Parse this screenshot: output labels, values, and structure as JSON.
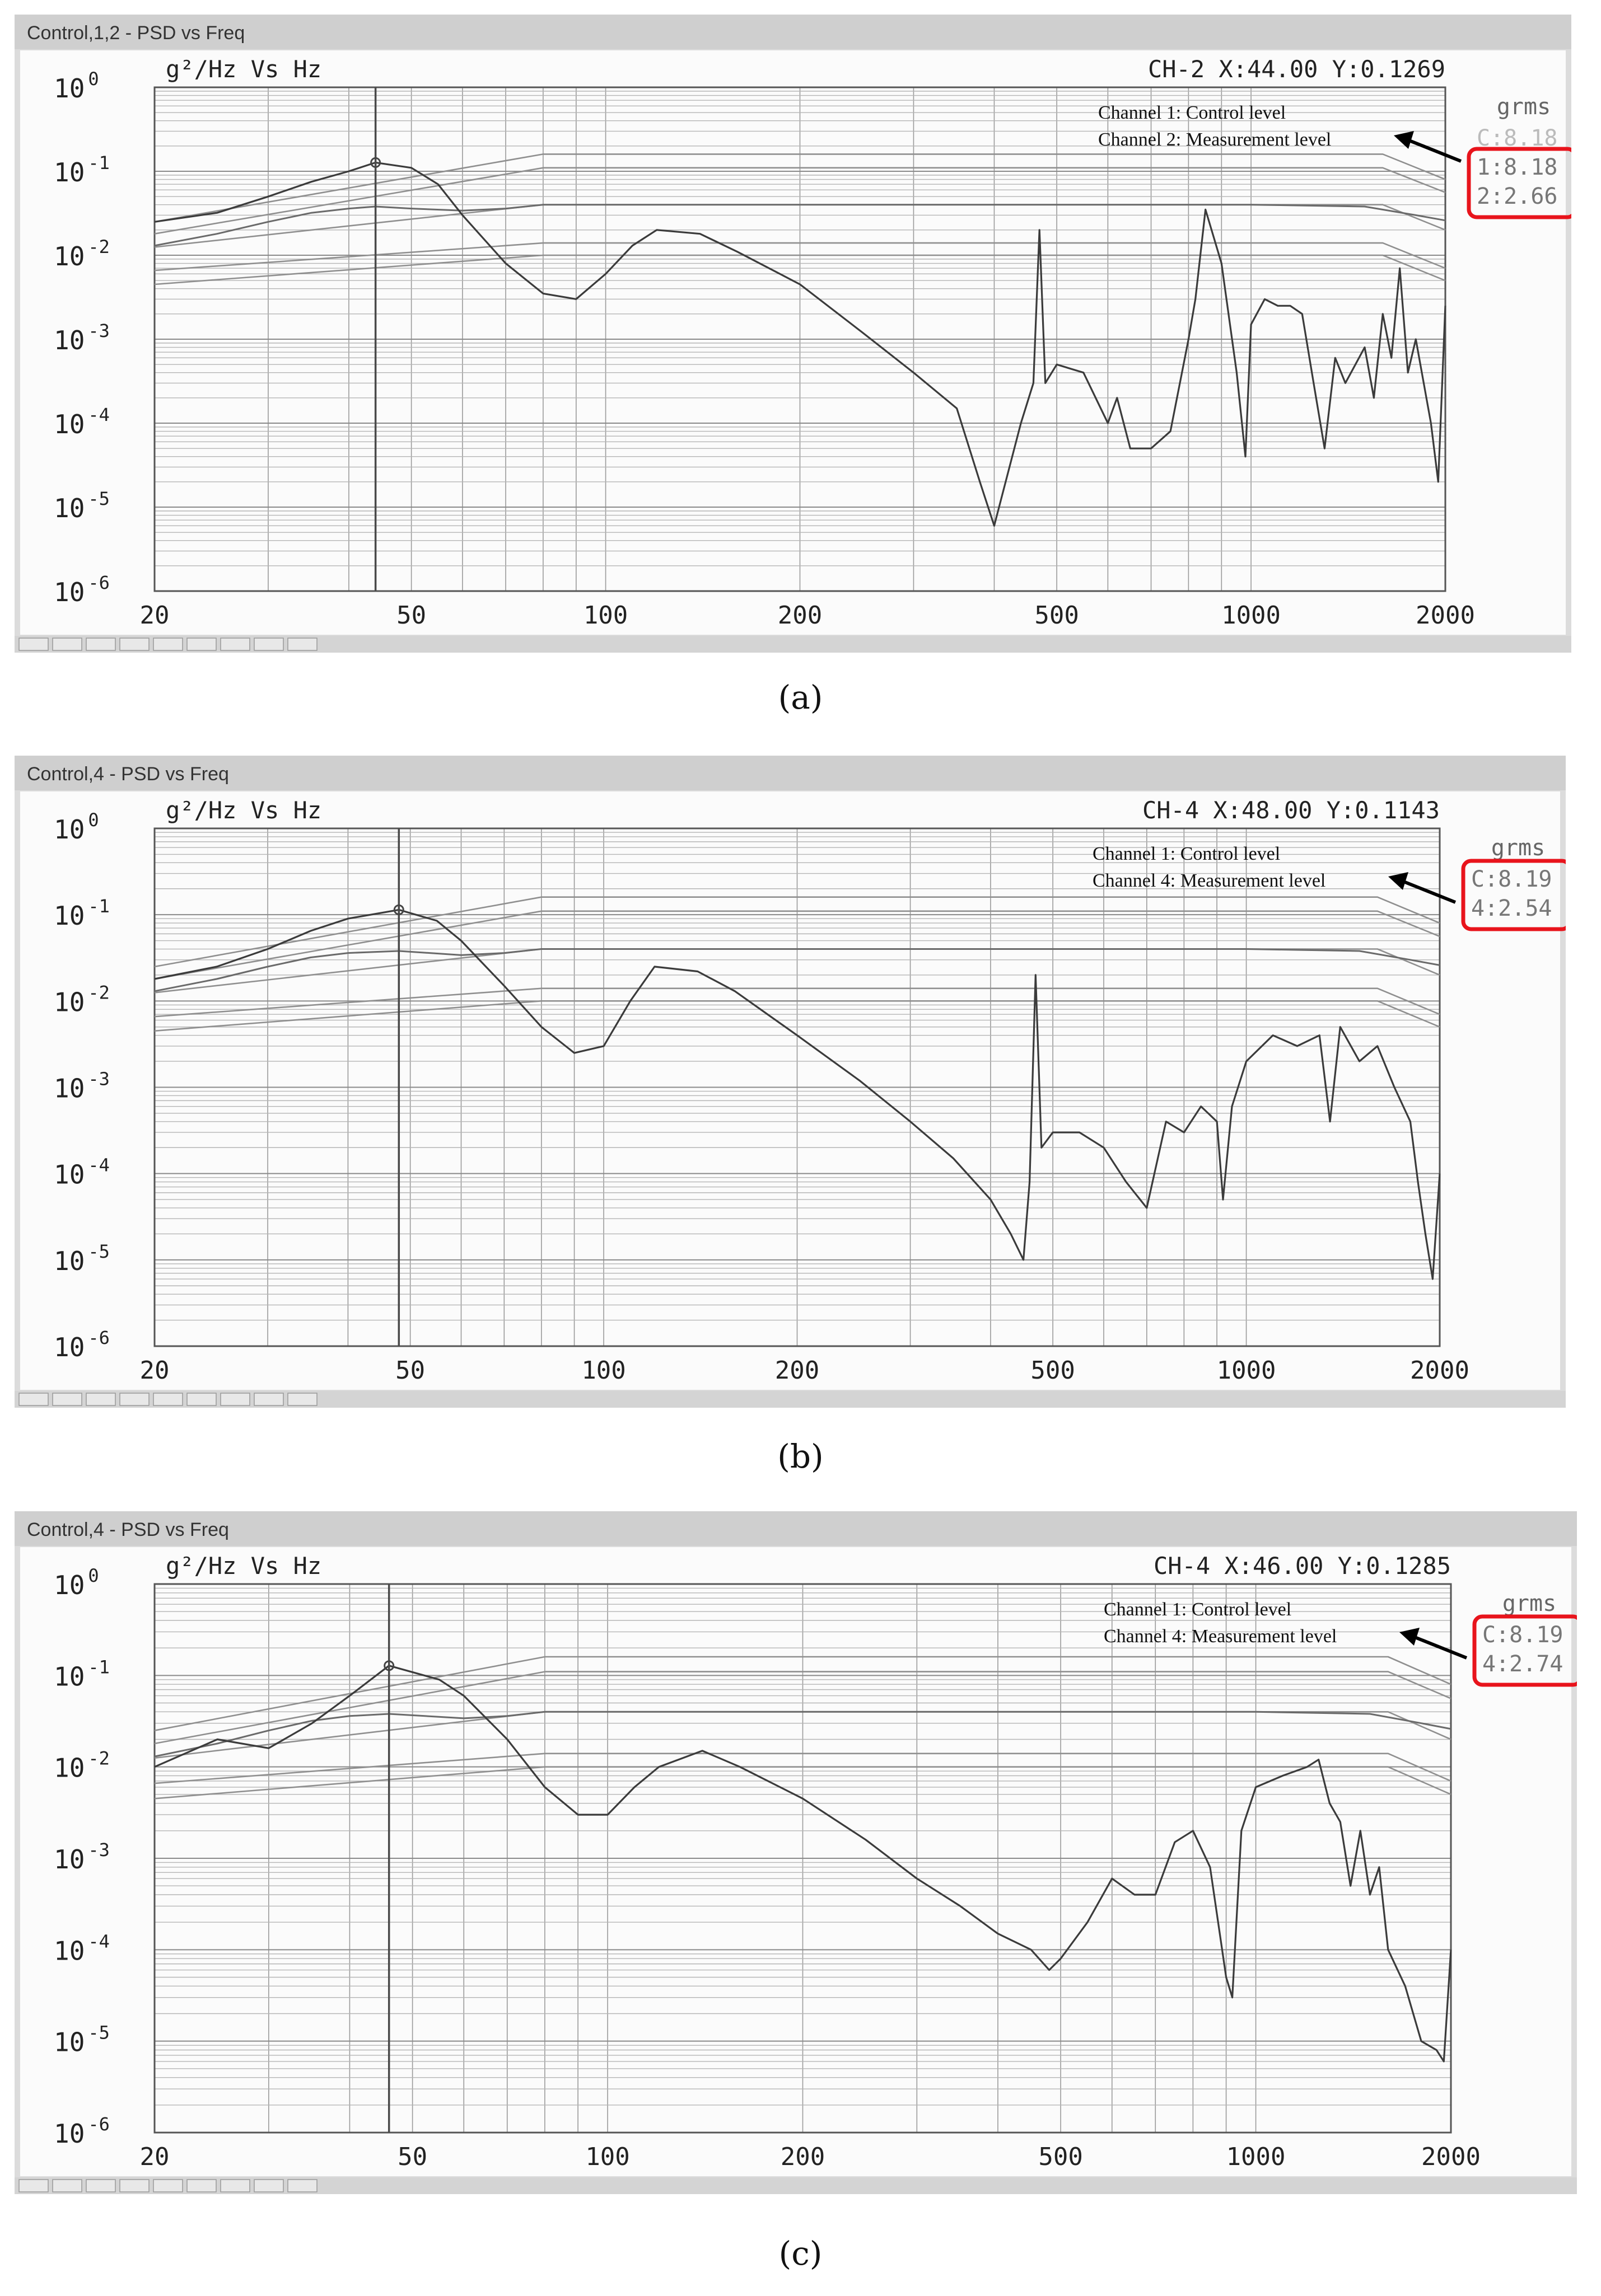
{
  "chart_data": [
    {
      "type": "line",
      "panel_label": "(a)",
      "window_title": "Control,1,2 - PSD vs Freq",
      "ylabel": "g²/Hz Vs Hz",
      "cursor_readout": "CH-2 X:44.00 Y:0.1269",
      "xscale": "log",
      "yscale": "log",
      "xlim": [
        20,
        2000
      ],
      "ylim": [
        1e-06,
        1
      ],
      "x_ticks": [
        "20",
        "50",
        "100",
        "200",
        "500",
        "1000",
        "2000"
      ],
      "y_tick_bases": [
        "10",
        "10",
        "10",
        "10",
        "10",
        "10",
        "10"
      ],
      "y_tick_exponents": [
        "0",
        "-1",
        "-2",
        "-3",
        "-4",
        "-5",
        "-6"
      ],
      "grid": true,
      "cursor_x": 44,
      "legend": {
        "line1": "Channel 1:  Control level",
        "line2": "Channel 2:  Measurement level",
        "placement": "top-right"
      },
      "grms": {
        "title": "grms",
        "entries": [
          "C:8.18",
          "1:8.18",
          "2:2.66"
        ],
        "highlighted": [
          1,
          2
        ]
      },
      "series": [
        {
          "role": "profile-upper-abort",
          "x": [
            20,
            80,
            1600,
            2000
          ],
          "y": [
            0.025,
            0.16,
            0.16,
            0.08
          ]
        },
        {
          "role": "profile-upper-alarm",
          "x": [
            20,
            80,
            1600,
            2000
          ],
          "y": [
            0.018,
            0.11,
            0.11,
            0.056
          ]
        },
        {
          "role": "profile-reference",
          "x": [
            20,
            80,
            1600,
            2000
          ],
          "y": [
            0.0125,
            0.04,
            0.04,
            0.02
          ]
        },
        {
          "role": "profile-lower-alarm",
          "x": [
            20,
            80,
            1600,
            2000
          ],
          "y": [
            0.0066,
            0.014,
            0.014,
            0.007
          ]
        },
        {
          "role": "profile-lower-abort",
          "x": [
            20,
            80,
            1600,
            2000
          ],
          "y": [
            0.0045,
            0.01,
            0.01,
            0.005
          ]
        },
        {
          "role": "control",
          "x": [
            20,
            25,
            30,
            35,
            40,
            44,
            50,
            60,
            70,
            80,
            100,
            200,
            500,
            1000,
            1500,
            1800,
            2000
          ],
          "y": [
            0.013,
            0.018,
            0.025,
            0.032,
            0.036,
            0.038,
            0.036,
            0.034,
            0.036,
            0.04,
            0.04,
            0.04,
            0.04,
            0.04,
            0.038,
            0.03,
            0.026
          ]
        },
        {
          "role": "measurement",
          "x": [
            20,
            25,
            30,
            35,
            40,
            44,
            50,
            55,
            60,
            70,
            80,
            90,
            100,
            110,
            120,
            140,
            160,
            200,
            250,
            300,
            350,
            380,
            400,
            440,
            460,
            470,
            480,
            500,
            550,
            600,
            620,
            650,
            700,
            750,
            800,
            820,
            850,
            900,
            950,
            980,
            1000,
            1050,
            1100,
            1150,
            1200,
            1250,
            1300,
            1350,
            1400,
            1500,
            1550,
            1600,
            1650,
            1700,
            1750,
            1800,
            1900,
            1950,
            2000
          ],
          "y": [
            0.025,
            0.032,
            0.05,
            0.075,
            0.1,
            0.127,
            0.11,
            0.07,
            0.03,
            0.008,
            0.0035,
            0.003,
            0.006,
            0.013,
            0.02,
            0.018,
            0.011,
            0.0045,
            0.0012,
            0.0004,
            0.00015,
            2e-05,
            6e-06,
            0.0001,
            0.0003,
            0.02,
            0.0003,
            0.0005,
            0.0004,
            0.0001,
            0.0002,
            5e-05,
            5e-05,
            8e-05,
            0.001,
            0.003,
            0.035,
            0.008,
            0.0004,
            4e-05,
            0.0015,
            0.003,
            0.0025,
            0.0025,
            0.002,
            0.0003,
            5e-05,
            0.0006,
            0.0003,
            0.0008,
            0.0002,
            0.002,
            0.0006,
            0.007,
            0.0004,
            0.001,
            0.0001,
            2e-05,
            0.0025
          ]
        }
      ]
    },
    {
      "type": "line",
      "panel_label": "(b)",
      "window_title": "Control,4 - PSD vs Freq",
      "ylabel": "g²/Hz Vs Hz",
      "cursor_readout": "CH-4 X:48.00 Y:0.1143",
      "xscale": "log",
      "yscale": "log",
      "xlim": [
        20,
        2000
      ],
      "ylim": [
        1e-06,
        1
      ],
      "x_ticks": [
        "20",
        "50",
        "100",
        "200",
        "500",
        "1000",
        "2000"
      ],
      "y_tick_bases": [
        "10",
        "10",
        "10",
        "10",
        "10",
        "10",
        "10"
      ],
      "y_tick_exponents": [
        "0",
        "-1",
        "-2",
        "-3",
        "-4",
        "-5",
        "-6"
      ],
      "grid": true,
      "cursor_x": 48,
      "legend": {
        "line1": "Channel 1:  Control level",
        "line2": "Channel 4:  Measurement level",
        "placement": "top-right"
      },
      "grms": {
        "title": "grms",
        "entries": [
          "C:8.19",
          "4:2.54"
        ],
        "highlighted": [
          0,
          1
        ]
      },
      "series": [
        {
          "role": "profile-upper-abort",
          "x": [
            20,
            80,
            1600,
            2000
          ],
          "y": [
            0.025,
            0.16,
            0.16,
            0.08
          ]
        },
        {
          "role": "profile-upper-alarm",
          "x": [
            20,
            80,
            1600,
            2000
          ],
          "y": [
            0.018,
            0.11,
            0.11,
            0.056
          ]
        },
        {
          "role": "profile-reference",
          "x": [
            20,
            80,
            1600,
            2000
          ],
          "y": [
            0.0125,
            0.04,
            0.04,
            0.02
          ]
        },
        {
          "role": "profile-lower-alarm",
          "x": [
            20,
            80,
            1600,
            2000
          ],
          "y": [
            0.0066,
            0.014,
            0.014,
            0.007
          ]
        },
        {
          "role": "profile-lower-abort",
          "x": [
            20,
            80,
            1600,
            2000
          ],
          "y": [
            0.0045,
            0.01,
            0.01,
            0.005
          ]
        },
        {
          "role": "control",
          "x": [
            20,
            25,
            30,
            35,
            40,
            48,
            60,
            70,
            80,
            100,
            200,
            500,
            1000,
            1500,
            1800,
            2000
          ],
          "y": [
            0.013,
            0.018,
            0.025,
            0.032,
            0.036,
            0.038,
            0.034,
            0.036,
            0.04,
            0.04,
            0.04,
            0.04,
            0.04,
            0.038,
            0.03,
            0.026
          ]
        },
        {
          "role": "measurement",
          "x": [
            20,
            25,
            30,
            35,
            40,
            48,
            55,
            60,
            70,
            80,
            90,
            100,
            110,
            120,
            140,
            160,
            200,
            250,
            300,
            350,
            400,
            430,
            450,
            460,
            470,
            480,
            500,
            550,
            600,
            650,
            700,
            750,
            800,
            850,
            900,
            920,
            950,
            1000,
            1100,
            1200,
            1300,
            1350,
            1400,
            1500,
            1600,
            1700,
            1800,
            1850,
            1900,
            1950,
            2000
          ],
          "y": [
            0.018,
            0.025,
            0.04,
            0.065,
            0.09,
            0.114,
            0.085,
            0.05,
            0.015,
            0.005,
            0.0025,
            0.003,
            0.01,
            0.025,
            0.022,
            0.013,
            0.004,
            0.0012,
            0.0004,
            0.00015,
            5e-05,
            2e-05,
            1e-05,
            8e-05,
            0.02,
            0.0002,
            0.0003,
            0.0003,
            0.0002,
            8e-05,
            4e-05,
            0.0004,
            0.0003,
            0.0006,
            0.0004,
            5e-05,
            0.0006,
            0.002,
            0.004,
            0.003,
            0.004,
            0.0004,
            0.005,
            0.002,
            0.003,
            0.001,
            0.0004,
            8e-05,
            2e-05,
            6e-06,
            0.0001
          ]
        }
      ]
    },
    {
      "type": "line",
      "panel_label": "(c)",
      "window_title": "Control,4 - PSD vs Freq",
      "ylabel": "g²/Hz Vs Hz",
      "cursor_readout": "CH-4 X:46.00 Y:0.1285",
      "xscale": "log",
      "yscale": "log",
      "xlim": [
        20,
        2000
      ],
      "ylim": [
        1e-06,
        1
      ],
      "x_ticks": [
        "20",
        "50",
        "100",
        "200",
        "500",
        "1000",
        "2000"
      ],
      "y_tick_bases": [
        "10",
        "10",
        "10",
        "10",
        "10",
        "10",
        "10"
      ],
      "y_tick_exponents": [
        "0",
        "-1",
        "-2",
        "-3",
        "-4",
        "-5",
        "-6"
      ],
      "grid": true,
      "cursor_x": 46,
      "legend": {
        "line1": "Channel 1:  Control level",
        "line2": "Channel 4:  Measurement level",
        "placement": "top-right"
      },
      "grms": {
        "title": "grms",
        "entries": [
          "C:8.19",
          "4:2.74"
        ],
        "highlighted": [
          0,
          1
        ]
      },
      "series": [
        {
          "role": "profile-upper-abort",
          "x": [
            20,
            80,
            1600,
            2000
          ],
          "y": [
            0.025,
            0.16,
            0.16,
            0.08
          ]
        },
        {
          "role": "profile-upper-alarm",
          "x": [
            20,
            80,
            1600,
            2000
          ],
          "y": [
            0.018,
            0.11,
            0.11,
            0.056
          ]
        },
        {
          "role": "profile-reference",
          "x": [
            20,
            80,
            1600,
            2000
          ],
          "y": [
            0.0125,
            0.04,
            0.04,
            0.02
          ]
        },
        {
          "role": "profile-lower-alarm",
          "x": [
            20,
            80,
            1600,
            2000
          ],
          "y": [
            0.0066,
            0.014,
            0.014,
            0.007
          ]
        },
        {
          "role": "profile-lower-abort",
          "x": [
            20,
            80,
            1600,
            2000
          ],
          "y": [
            0.0045,
            0.01,
            0.01,
            0.005
          ]
        },
        {
          "role": "control",
          "x": [
            20,
            25,
            30,
            35,
            40,
            46,
            60,
            70,
            80,
            100,
            200,
            500,
            1000,
            1500,
            1800,
            2000
          ],
          "y": [
            0.013,
            0.018,
            0.025,
            0.032,
            0.036,
            0.038,
            0.034,
            0.036,
            0.04,
            0.04,
            0.04,
            0.04,
            0.04,
            0.038,
            0.03,
            0.026
          ]
        },
        {
          "role": "measurement",
          "x": [
            20,
            25,
            30,
            35,
            40,
            46,
            55,
            60,
            70,
            80,
            90,
            100,
            110,
            120,
            140,
            160,
            200,
            250,
            300,
            350,
            400,
            450,
            480,
            500,
            550,
            600,
            650,
            700,
            750,
            800,
            850,
            900,
            920,
            950,
            1000,
            1100,
            1200,
            1250,
            1300,
            1350,
            1400,
            1450,
            1500,
            1550,
            1600,
            1700,
            1800,
            1900,
            1950,
            2000
          ],
          "y": [
            0.01,
            0.02,
            0.016,
            0.03,
            0.06,
            0.128,
            0.09,
            0.06,
            0.02,
            0.006,
            0.003,
            0.003,
            0.006,
            0.01,
            0.015,
            0.01,
            0.0045,
            0.0016,
            0.0006,
            0.0003,
            0.00015,
            0.0001,
            6e-05,
            8e-05,
            0.0002,
            0.0006,
            0.0004,
            0.0004,
            0.0015,
            0.002,
            0.0008,
            5e-05,
            3e-05,
            0.002,
            0.006,
            0.008,
            0.01,
            0.012,
            0.004,
            0.0025,
            0.0005,
            0.002,
            0.0004,
            0.0008,
            0.0001,
            4e-05,
            1e-05,
            8e-06,
            6e-06,
            0.0001
          ]
        }
      ]
    }
  ]
}
